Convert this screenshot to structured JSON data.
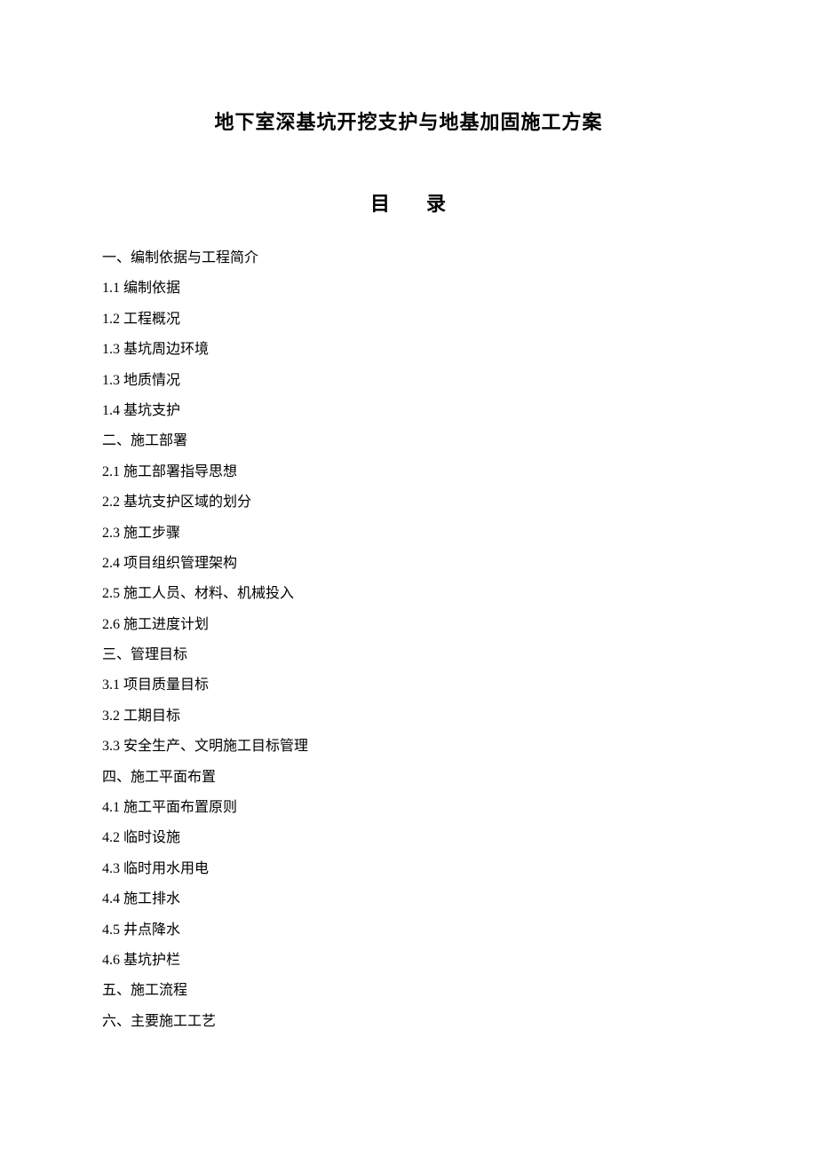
{
  "document": {
    "title": "地下室深基坑开挖支护与地基加固施工方案",
    "toc_label_left": "目",
    "toc_label_right": "录",
    "toc": [
      "一、编制依据与工程简介",
      "1.1 编制依据",
      "1.2  工程概况",
      "1.3 基坑周边环境",
      "1.3  地质情况",
      "1.4 基坑支护",
      "二、施工部署",
      "2.1 施工部署指导思想",
      "2.2 基坑支护区域的划分",
      "2.3 施工步骤",
      "2.4 项目组织管理架构",
      "2.5 施工人员、材料、机械投入",
      "2.6 施工进度计划",
      "三、管理目标",
      "3.1 项目质量目标",
      "3.2 工期目标",
      "3.3 安全生产、文明施工目标管理",
      "四、施工平面布置",
      "4.1 施工平面布置原则",
      "4.2 临时设施",
      "4.3 临时用水用电",
      "4.4 施工排水",
      "4.5 井点降水",
      "4.6 基坑护栏",
      "五、施工流程",
      "六、主要施工工艺"
    ]
  },
  "style": {
    "background_color": "#ffffff",
    "text_color": "#000000",
    "title_fontsize": 22,
    "body_fontsize": 16,
    "line_height": 2.15
  }
}
